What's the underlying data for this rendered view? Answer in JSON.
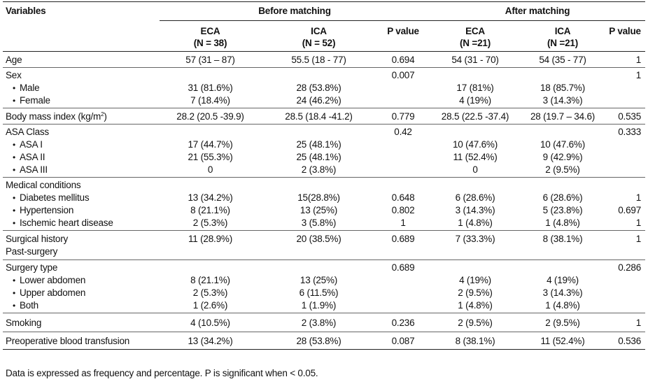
{
  "header": {
    "variables": "Variables",
    "before": "Before matching",
    "after": "After matching",
    "cols": [
      {
        "l1": "ECA",
        "l2": "(N = 38)"
      },
      {
        "l1": "ICA",
        "l2": "(N = 52)"
      },
      {
        "l1": "P value",
        "l2": ""
      },
      {
        "l1": "ECA",
        "l2": "(N =21)"
      },
      {
        "l1": "ICA",
        "l2": "(N =21)"
      },
      {
        "l1": "P value",
        "l2": ""
      }
    ]
  },
  "rows": {
    "age": {
      "label": "Age",
      "v": [
        "57 (31 – 87)",
        "55.5 (18 - 77)",
        "0.694",
        "54 (31 - 70)",
        "54 (35 - 77)",
        "1"
      ]
    },
    "sex": {
      "label": "Sex",
      "p1": "0.007",
      "p2": "1",
      "male": {
        "label": "Male",
        "v": [
          "31 (81.6%)",
          "28 (53.8%)",
          "17 (81%)",
          "18 (85.7%)"
        ]
      },
      "female": {
        "label": "Female",
        "v": [
          "7 (18.4%)",
          "24 (46.2%)",
          "4 (19%)",
          "3 (14.3%)"
        ]
      }
    },
    "bmi": {
      "label": "Body mass index (kg/m",
      "sup": "2",
      "close": ")",
      "v": [
        "28.2 (20.5 -39.9)",
        "28.5 (18.4 -41.2)",
        "0.779",
        "28.5 (22.5 -37.4)",
        "28 (19.7 – 34.6)",
        "0.535"
      ]
    },
    "asa": {
      "label": "ASA Class",
      "p1": "0.42",
      "p2": "0.333",
      "a1": {
        "label": "ASA I",
        "v": [
          "17 (44.7%)",
          "25 (48.1%)",
          "10 (47.6%)",
          "10 (47.6%)"
        ]
      },
      "a2": {
        "label": "ASA II",
        "v": [
          "21 (55.3%)",
          "25 (48.1%)",
          "11 (52.4%)",
          "9 (42.9%)"
        ]
      },
      "a3": {
        "label": "ASA III",
        "v": [
          "0",
          "2 (3.8%)",
          "0",
          "2 (9.5%)"
        ]
      }
    },
    "med": {
      "label": "Medical conditions",
      "dm": {
        "label": "Diabetes mellitus",
        "v": [
          "13 (34.2%)",
          "15(28.8%)",
          "0.648",
          "6 (28.6%)",
          "6 (28.6%)",
          "1"
        ]
      },
      "ht": {
        "label": "Hypertension",
        "v": [
          "8 (21.1%)",
          "13 (25%)",
          "0.802",
          "3 (14.3%)",
          "5 (23.8%)",
          "0.697"
        ]
      },
      "ihd": {
        "label": "Ischemic heart disease",
        "v": [
          "2 (5.3%)",
          "3 (5.8%)",
          "1",
          "1 (4.8%)",
          "1 (4.8%)",
          "1"
        ]
      }
    },
    "surg": {
      "label": "Surgical history",
      "label2": "Past-surgery",
      "v": [
        "11 (28.9%)",
        "20 (38.5%)",
        "0.689",
        "7 (33.3%)",
        "8 (38.1%)",
        "1"
      ]
    },
    "stype": {
      "label": "Surgery type",
      "p1": "0.689",
      "p2": "0.286",
      "lower": {
        "label": "Lower abdomen",
        "v": [
          "8 (21.1%)",
          "13 (25%)",
          "4 (19%)",
          "4 (19%)"
        ]
      },
      "upper": {
        "label": "Upper abdomen",
        "v": [
          "2 (5.3%)",
          "6 (11.5%)",
          "2 (9.5%)",
          "3 (14.3%)"
        ]
      },
      "both": {
        "label": "Both",
        "v": [
          "1 (2.6%)",
          "1 (1.9%)",
          "1 (4.8%)",
          "1 (4.8%)"
        ]
      }
    },
    "smoking": {
      "label": "Smoking",
      "v": [
        "4 (10.5%)",
        "2 (3.8%)",
        "0.236",
        "2 (9.5%)",
        "2 (9.5%)",
        "1"
      ]
    },
    "pbt": {
      "label": "Preoperative blood transfusion",
      "v": [
        "13 (34.2%)",
        "28 (53.8%)",
        "0.087",
        "8 (38.1%)",
        "11 (52.4%)",
        "0.536"
      ]
    }
  },
  "bullet": "•",
  "note": "Data is expressed as frequency and percentage. P is significant when < 0.05."
}
